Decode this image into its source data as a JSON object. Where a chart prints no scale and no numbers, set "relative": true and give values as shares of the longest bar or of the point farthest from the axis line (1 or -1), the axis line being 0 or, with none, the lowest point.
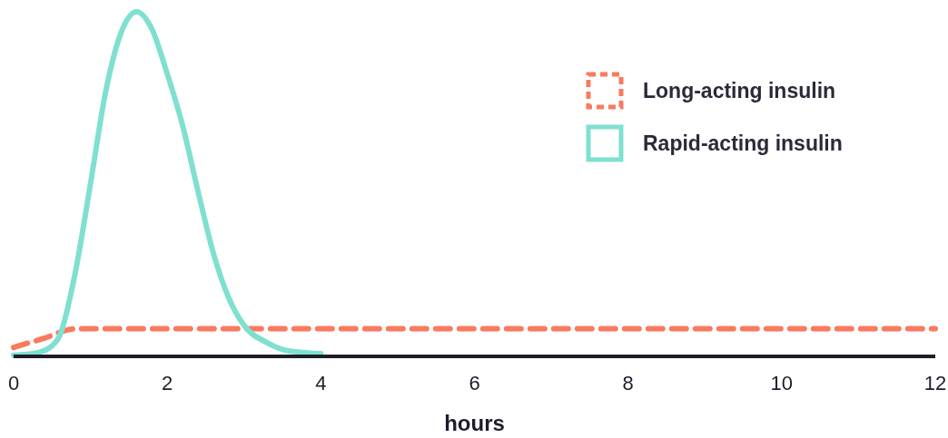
{
  "chart_data": {
    "type": "line",
    "relative": true,
    "xlabel": "hours",
    "xlim": [
      0,
      12
    ],
    "xticks": [
      0,
      2,
      4,
      6,
      8,
      10,
      12
    ],
    "legend": "top right",
    "grid": false,
    "series": [
      {
        "name": "Long-acting insulin",
        "color": "#f97a5f",
        "line_style": "dashed",
        "x": [
          0,
          0.4,
          0.8,
          2,
          4,
          6,
          8,
          10,
          12
        ],
        "values": [
          0.026,
          0.053,
          0.08,
          0.08,
          0.08,
          0.08,
          0.08,
          0.08,
          0.08
        ]
      },
      {
        "name": "Rapid-acting insulin",
        "color": "#7fe0d0",
        "line_style": "solid",
        "x": [
          0,
          0.3,
          0.5,
          0.6,
          0.8,
          1.0,
          1.2,
          1.4,
          1.6,
          1.8,
          2.0,
          2.2,
          2.4,
          2.6,
          2.8,
          3.0,
          3.3,
          3.6,
          4.0
        ],
        "values": [
          0.003,
          0.01,
          0.03,
          0.06,
          0.24,
          0.5,
          0.77,
          0.94,
          1,
          0.95,
          0.82,
          0.67,
          0.48,
          0.3,
          0.17,
          0.09,
          0.04,
          0.015,
          0.008
        ]
      }
    ]
  }
}
